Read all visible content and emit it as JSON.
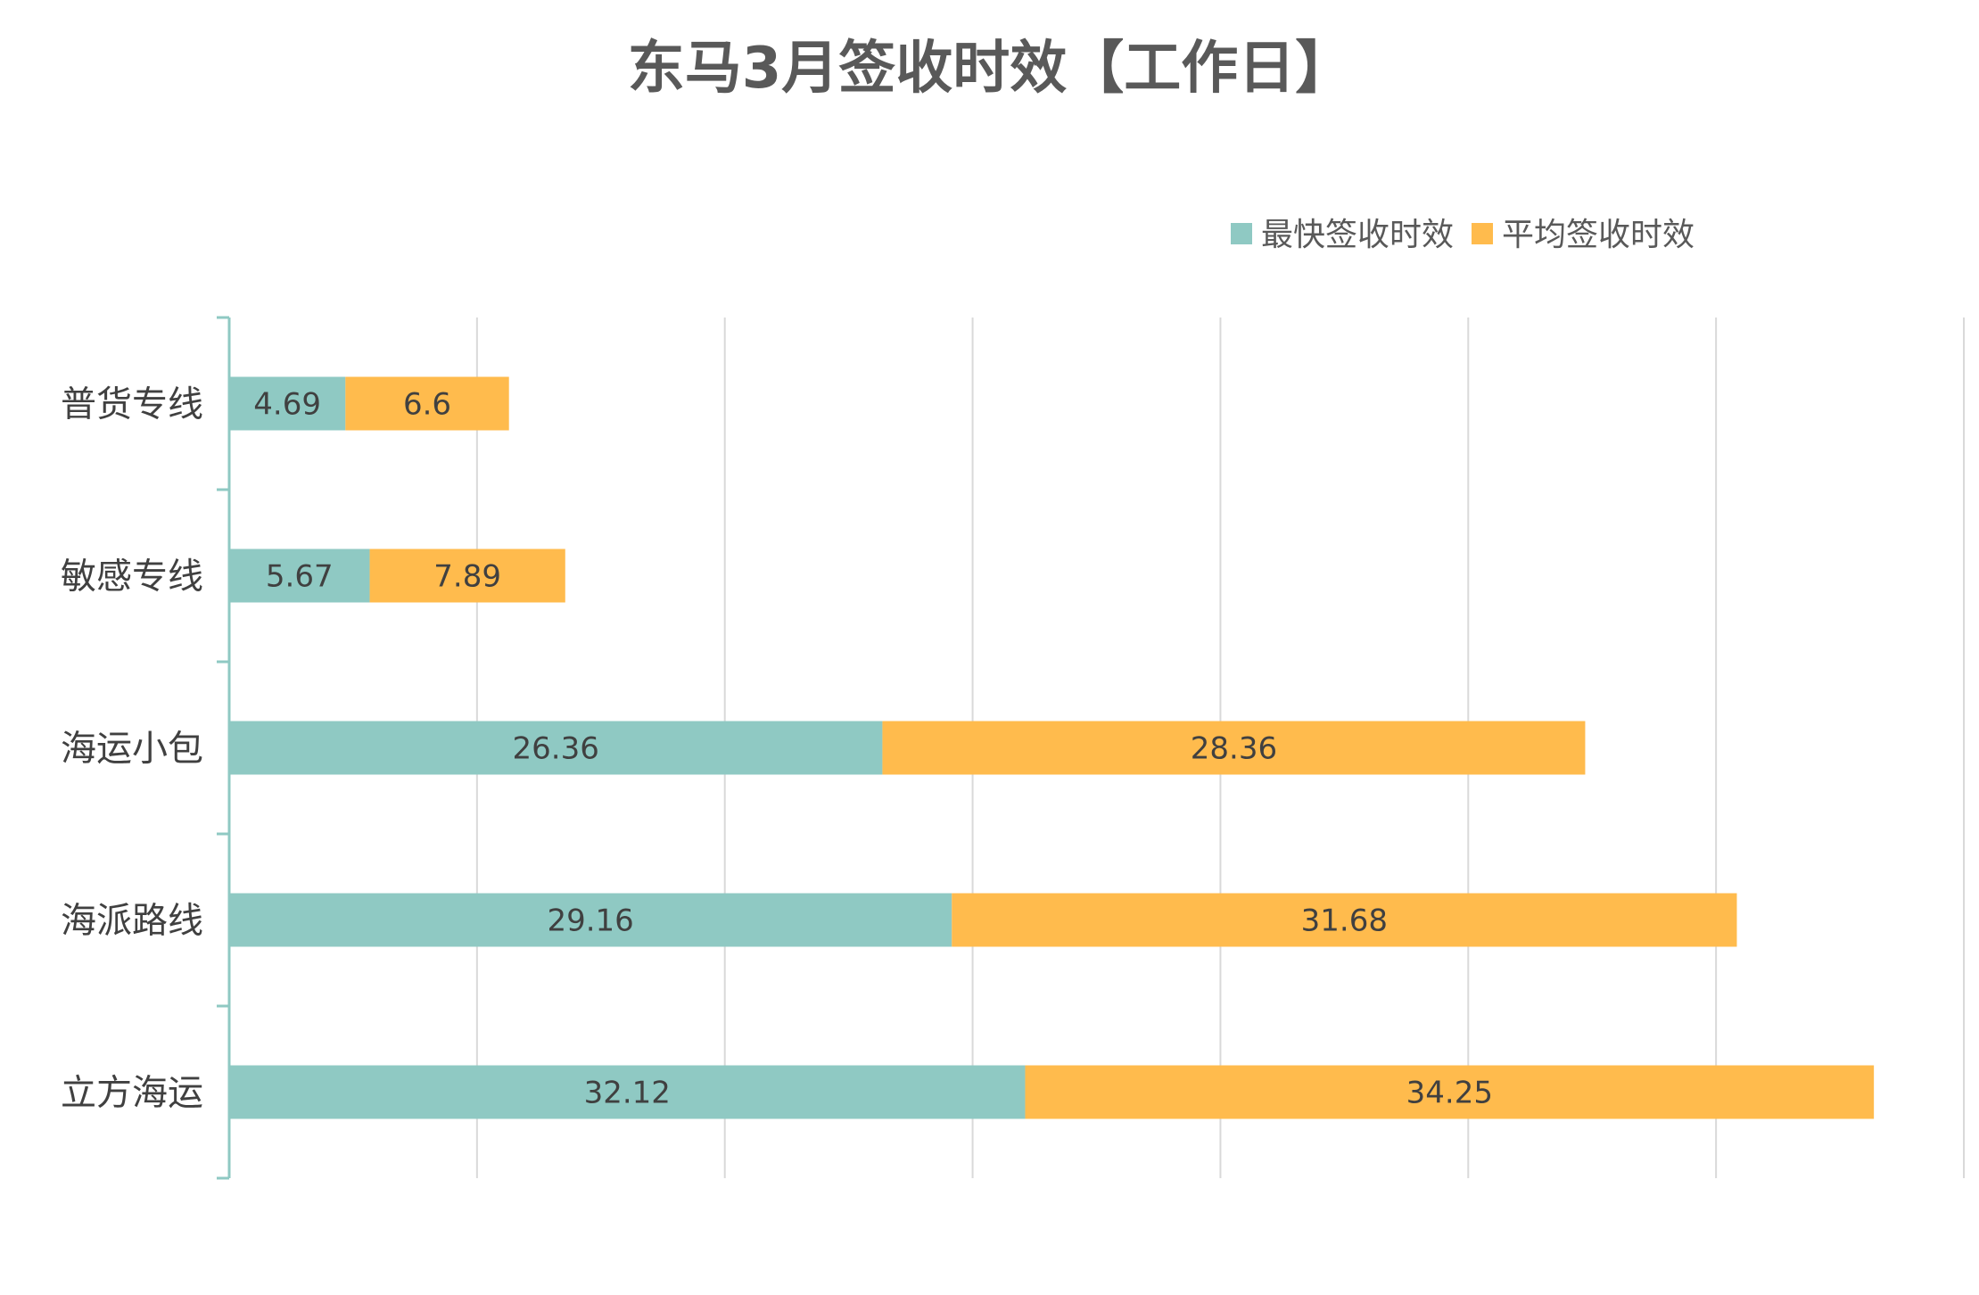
{
  "chart_data": {
    "type": "bar",
    "orientation": "horizontal",
    "stacked": true,
    "title": "东马3月签收时效【工作日】",
    "categories": [
      "普货专线",
      "敏感专线",
      "海运小包",
      "海派路线",
      "立方海运"
    ],
    "series": [
      {
        "name": "最快签收时效",
        "color": "#8FC9C3",
        "values": [
          4.69,
          5.67,
          26.36,
          29.16,
          32.12
        ]
      },
      {
        "name": "平均签收时效",
        "color": "#FFBB4D",
        "values": [
          6.6,
          7.89,
          28.36,
          31.68,
          34.25
        ]
      }
    ],
    "xlim": [
      0,
      70
    ],
    "x_gridline_step": 10,
    "grid": true,
    "legend_position": "top-right",
    "data_labels": true,
    "axis_color": "#8FC9C3",
    "grid_color": "#D9D9D9",
    "title_color": "#595959",
    "text_color": "#404040"
  }
}
